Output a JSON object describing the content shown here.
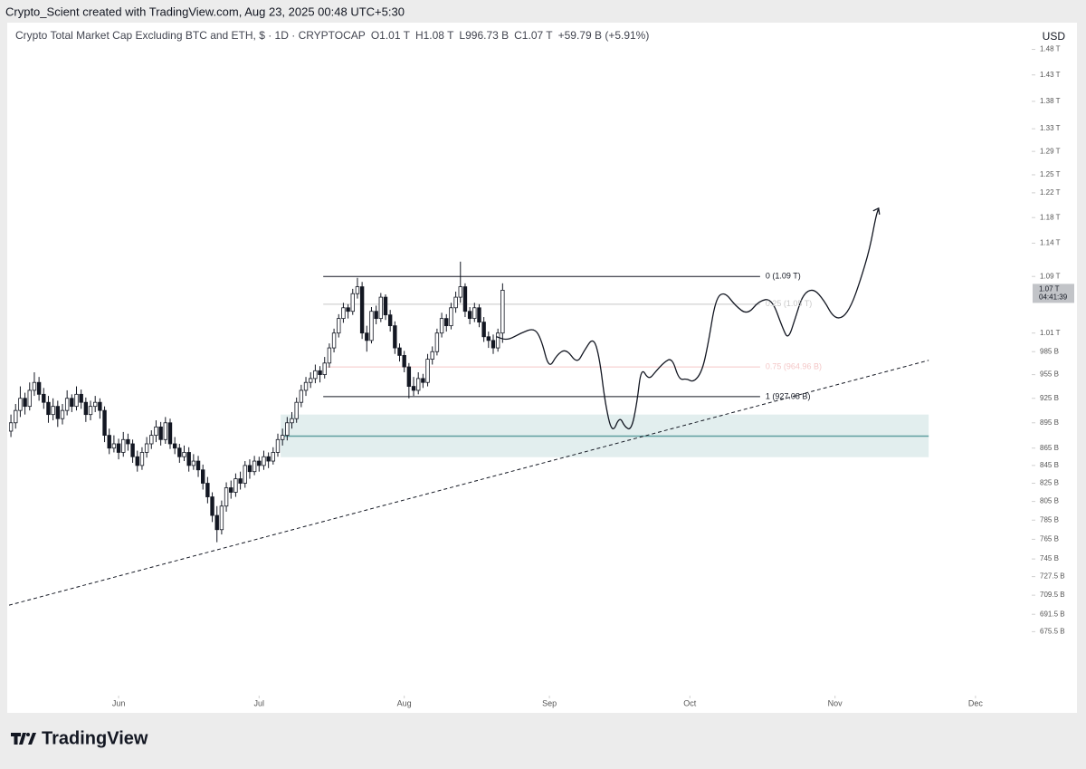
{
  "header": {
    "credit": "Crypto_Scient created with TradingView.com, Aug 23, 2025 00:48 UTC+5:30"
  },
  "chart_data": {
    "type": "candlestick",
    "title": "Crypto Total Market Cap Excluding BTC and ETH, $ · 1D · CRYPTOCAP",
    "ohlc_text": [
      "O1.01 T",
      "H1.08 T",
      "L996.73 B",
      "C1.07 T",
      "+59.79 B (+5.91%)"
    ],
    "currency": "USD",
    "log_scale": true,
    "ylim": [
      622,
      1525
    ],
    "xlim": [
      -0.4,
      218
    ],
    "yticks": [
      {
        "value": 1480,
        "label": "1.48 T"
      },
      {
        "value": 1430,
        "label": "1.43 T"
      },
      {
        "value": 1380,
        "label": "1.38 T"
      },
      {
        "value": 1330,
        "label": "1.33 T"
      },
      {
        "value": 1290,
        "label": "1.29 T"
      },
      {
        "value": 1250,
        "label": "1.25 T"
      },
      {
        "value": 1220,
        "label": "1.22 T"
      },
      {
        "value": 1180,
        "label": "1.18 T"
      },
      {
        "value": 1140,
        "label": "1.14 T"
      },
      {
        "value": 1090,
        "label": "1.09 T"
      },
      {
        "value": 1010,
        "label": "1.01 T"
      },
      {
        "value": 985,
        "label": "985 B"
      },
      {
        "value": 955,
        "label": "955 B"
      },
      {
        "value": 925,
        "label": "925 B"
      },
      {
        "value": 895,
        "label": "895 B"
      },
      {
        "value": 865,
        "label": "865 B"
      },
      {
        "value": 845,
        "label": "845 B"
      },
      {
        "value": 825,
        "label": "825 B"
      },
      {
        "value": 805,
        "label": "805 B"
      },
      {
        "value": 785,
        "label": "785 B"
      },
      {
        "value": 765,
        "label": "765 B"
      },
      {
        "value": 745,
        "label": "745 B"
      },
      {
        "value": 727.5,
        "label": "727.5 B"
      },
      {
        "value": 709.5,
        "label": "709.5 B"
      },
      {
        "value": 691.5,
        "label": "691.5 B"
      },
      {
        "value": 675.5,
        "label": "675.5 B"
      }
    ],
    "xticks": [
      {
        "value": 23,
        "label": "Jun"
      },
      {
        "value": 53,
        "label": "Jul"
      },
      {
        "value": 84,
        "label": "Aug"
      },
      {
        "value": 115,
        "label": "Sep"
      },
      {
        "value": 145,
        "label": "Oct"
      },
      {
        "value": 176,
        "label": "Nov"
      },
      {
        "value": 206,
        "label": "Dec"
      }
    ],
    "price_tag": {
      "value": 1070,
      "label": "1.07 T",
      "countdown": "04:41:39"
    },
    "up_color": "#ffffff",
    "down_color": "#131722",
    "candles": [
      [
        885,
        905,
        878,
        895
      ],
      [
        895,
        918,
        888,
        910
      ],
      [
        910,
        940,
        902,
        925
      ],
      [
        925,
        932,
        905,
        915
      ],
      [
        915,
        945,
        910,
        935
      ],
      [
        935,
        958,
        928,
        945
      ],
      [
        945,
        952,
        922,
        930
      ],
      [
        930,
        938,
        912,
        920
      ],
      [
        920,
        928,
        895,
        905
      ],
      [
        905,
        925,
        898,
        915
      ],
      [
        915,
        922,
        890,
        900
      ],
      [
        900,
        918,
        893,
        910
      ],
      [
        910,
        935,
        904,
        925
      ],
      [
        925,
        930,
        908,
        915
      ],
      [
        915,
        940,
        910,
        930
      ],
      [
        930,
        936,
        912,
        920
      ],
      [
        920,
        926,
        896,
        905
      ],
      [
        905,
        922,
        898,
        915
      ],
      [
        915,
        928,
        908,
        920
      ],
      [
        920,
        925,
        900,
        910
      ],
      [
        910,
        915,
        872,
        880
      ],
      [
        880,
        888,
        858,
        865
      ],
      [
        865,
        880,
        860,
        870
      ],
      [
        870,
        876,
        852,
        860
      ],
      [
        860,
        884,
        855,
        875
      ],
      [
        875,
        882,
        862,
        870
      ],
      [
        870,
        875,
        848,
        855
      ],
      [
        855,
        862,
        838,
        845
      ],
      [
        845,
        866,
        840,
        860
      ],
      [
        860,
        878,
        854,
        870
      ],
      [
        870,
        886,
        864,
        880
      ],
      [
        880,
        898,
        872,
        890
      ],
      [
        890,
        896,
        868,
        875
      ],
      [
        875,
        902,
        870,
        895
      ],
      [
        895,
        900,
        864,
        870
      ],
      [
        870,
        878,
        858,
        865
      ],
      [
        865,
        870,
        848,
        855
      ],
      [
        855,
        868,
        850,
        860
      ],
      [
        860,
        866,
        838,
        845
      ],
      [
        845,
        858,
        840,
        850
      ],
      [
        850,
        856,
        832,
        840
      ],
      [
        840,
        846,
        818,
        825
      ],
      [
        825,
        832,
        803,
        810
      ],
      [
        810,
        815,
        783,
        790
      ],
      [
        790,
        800,
        762,
        775
      ],
      [
        775,
        806,
        770,
        800
      ],
      [
        800,
        826,
        794,
        820
      ],
      [
        820,
        828,
        808,
        815
      ],
      [
        815,
        836,
        810,
        830
      ],
      [
        830,
        838,
        818,
        825
      ],
      [
        825,
        850,
        820,
        845
      ],
      [
        845,
        852,
        830,
        838
      ],
      [
        838,
        856,
        834,
        850
      ],
      [
        850,
        855,
        838,
        845
      ],
      [
        845,
        862,
        840,
        855
      ],
      [
        855,
        860,
        842,
        850
      ],
      [
        850,
        866,
        846,
        860
      ],
      [
        860,
        882,
        855,
        875
      ],
      [
        875,
        888,
        868,
        880
      ],
      [
        880,
        902,
        874,
        895
      ],
      [
        895,
        908,
        888,
        900
      ],
      [
        900,
        926,
        895,
        920
      ],
      [
        920,
        942,
        914,
        935
      ],
      [
        935,
        952,
        928,
        945
      ],
      [
        945,
        958,
        938,
        950
      ],
      [
        950,
        968,
        944,
        960
      ],
      [
        960,
        966,
        945,
        955
      ],
      [
        955,
        978,
        950,
        970
      ],
      [
        970,
        996,
        964,
        990
      ],
      [
        990,
        1016,
        984,
        1010
      ],
      [
        1010,
        1036,
        1004,
        1030
      ],
      [
        1030,
        1052,
        1024,
        1045
      ],
      [
        1045,
        1050,
        1030,
        1040
      ],
      [
        1040,
        1072,
        1035,
        1065
      ],
      [
        1065,
        1088,
        1058,
        1075
      ],
      [
        1075,
        1082,
        1002,
        1010
      ],
      [
        1010,
        1020,
        985,
        1000
      ],
      [
        1000,
        1046,
        996,
        1040
      ],
      [
        1040,
        1048,
        1022,
        1030
      ],
      [
        1030,
        1066,
        1025,
        1060
      ],
      [
        1060,
        1064,
        1028,
        1035
      ],
      [
        1035,
        1042,
        1012,
        1020
      ],
      [
        1020,
        1026,
        982,
        990
      ],
      [
        990,
        996,
        972,
        980
      ],
      [
        980,
        986,
        958,
        965
      ],
      [
        965,
        970,
        925,
        940
      ],
      [
        940,
        952,
        928,
        935
      ],
      [
        935,
        958,
        930,
        950
      ],
      [
        950,
        956,
        938,
        945
      ],
      [
        945,
        982,
        940,
        975
      ],
      [
        975,
        992,
        968,
        985
      ],
      [
        985,
        1016,
        980,
        1010
      ],
      [
        1010,
        1038,
        1004,
        1030
      ],
      [
        1030,
        1036,
        1012,
        1020
      ],
      [
        1020,
        1052,
        1015,
        1045
      ],
      [
        1045,
        1068,
        1038,
        1060
      ],
      [
        1060,
        1112,
        1052,
        1075
      ],
      [
        1075,
        1080,
        1032,
        1040
      ],
      [
        1040,
        1046,
        1022,
        1030
      ],
      [
        1030,
        1052,
        1025,
        1045
      ],
      [
        1045,
        1050,
        1018,
        1025
      ],
      [
        1025,
        1032,
        998,
        1005
      ],
      [
        1005,
        1012,
        990,
        1000
      ],
      [
        1000,
        1008,
        982,
        990
      ],
      [
        990,
        1016,
        985,
        1010
      ],
      [
        1010,
        1080,
        996.73,
        1070
      ]
    ],
    "fib": {
      "x": [
        66.7,
        160
      ],
      "levels": [
        {
          "label": "0 (1.09 T)",
          "value": 1090,
          "color": "#131722"
        },
        {
          "label": "0.25 (1.05 T)",
          "value": 1050,
          "color": "#c8c8c8"
        },
        {
          "label": "0.75 (964.96 B)",
          "value": 964.96,
          "color": "#f4c7c7"
        },
        {
          "label": "1 (927.08 B)",
          "value": 927.08,
          "color": "#131722"
        }
      ]
    },
    "zone": {
      "x": [
        57.6,
        196
      ],
      "y": [
        854.5,
        905
      ],
      "mid": 879,
      "color": "#5f9ea0"
    },
    "trendline": {
      "x": [
        -0.4,
        196
      ],
      "values": [
        700,
        973.6
      ]
    },
    "projection": {
      "x": [
        103.7,
        106,
        108.9,
        111.8,
        113.3,
        114.9,
        116.6,
        118.6,
        120.9,
        122.4,
        124.4,
        125.7,
        126.9,
        128.4,
        130,
        131.1,
        132.5,
        133.7,
        134.6,
        136.2,
        137.7,
        139.5,
        141.2,
        142.7,
        144.3,
        145.8,
        147.6,
        148.9,
        150.5,
        152.4,
        154.7,
        157.3,
        159.8,
        162.5,
        164.8,
        166,
        167.5,
        169.1,
        171.4,
        173.7,
        175.6,
        177.6,
        179.5,
        181.4,
        183.4,
        184.7,
        185.3
      ],
      "values": [
        1005,
        1000,
        1010,
        1017,
        1001,
        962,
        981,
        989,
        969,
        986,
        1005,
        977,
        919,
        881,
        903,
        890,
        886,
        919,
        965,
        948,
        959,
        971,
        977,
        948,
        950,
        945,
        959,
        995,
        1058,
        1068,
        1048,
        1035,
        1055,
        1058,
        1017,
        1001,
        1030,
        1064,
        1073,
        1055,
        1032,
        1030,
        1048,
        1084,
        1131,
        1181,
        1195
      ]
    }
  },
  "footer": {
    "brand": "TradingView"
  }
}
